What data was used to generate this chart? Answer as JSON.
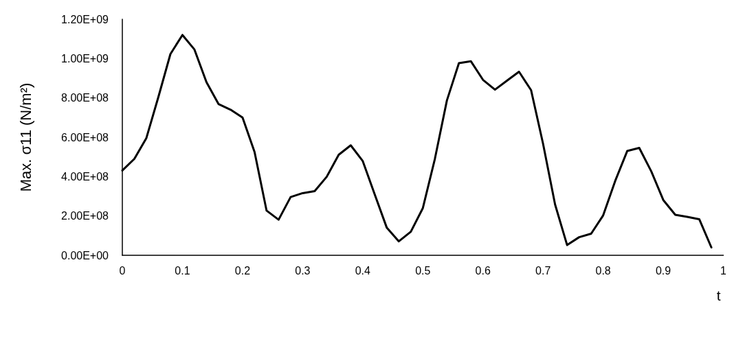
{
  "chart_data": {
    "type": "line",
    "xlabel": "t",
    "ylabel": "Max. σ11 (N/m²)",
    "x": [
      0,
      0.02,
      0.04,
      0.06,
      0.08,
      0.1,
      0.12,
      0.14,
      0.16,
      0.18,
      0.2,
      0.22,
      0.24,
      0.26,
      0.28,
      0.3,
      0.32,
      0.34,
      0.36,
      0.38,
      0.4,
      0.42,
      0.44,
      0.46,
      0.48,
      0.5,
      0.52,
      0.54,
      0.56,
      0.58,
      0.6,
      0.62,
      0.64,
      0.66,
      0.68,
      0.7,
      0.72,
      0.74,
      0.76,
      0.78,
      0.8,
      0.82,
      0.84,
      0.86,
      0.88,
      0.9,
      0.92,
      0.94,
      0.96,
      0.98
    ],
    "series": [
      {
        "color": "#000000",
        "values": [
          431000000.0,
          490000000.0,
          596000000.0,
          805000000.0,
          1023000000.0,
          1120000000.0,
          1046000000.0,
          880000000.0,
          769000000.0,
          740000000.0,
          700000000.0,
          525000000.0,
          227000000.0,
          181000000.0,
          296000000.0,
          316000000.0,
          326000000.0,
          399000000.0,
          511000000.0,
          559000000.0,
          479000000.0,
          309000000.0,
          140000000.0,
          71000000.0,
          120000000.0,
          240000000.0,
          490000000.0,
          787000000.0,
          977000000.0,
          986000000.0,
          892000000.0,
          842000000.0,
          888000000.0,
          933000000.0,
          840000000.0,
          567000000.0,
          258000000.0,
          52000000.0,
          92000000.0,
          110000000.0,
          203000000.0,
          378000000.0,
          530000000.0,
          546000000.0,
          427000000.0,
          281000000.0,
          206000000.0,
          195000000.0,
          183000000.0,
          40000000.0
        ]
      }
    ],
    "xlim": [
      0,
      1
    ],
    "xticks": [
      0,
      0.1,
      0.2,
      0.3,
      0.4,
      0.5,
      0.6,
      0.7,
      0.8,
      0.9,
      1
    ],
    "ylim": [
      0,
      1200000000.0
    ],
    "yticks": [
      {
        "value": 0,
        "label": "0.00E+00"
      },
      {
        "value": 200000000.0,
        "label": "2.00E+08"
      },
      {
        "value": 400000000.0,
        "label": "4.00E+08"
      },
      {
        "value": 600000000.0,
        "label": "6.00E+08"
      },
      {
        "value": 800000000.0,
        "label": "8.00E+08"
      },
      {
        "value": 1000000000.0,
        "label": "1.00E+09"
      },
      {
        "value": 1200000000.0,
        "label": "1.20E+09"
      }
    ],
    "grid": false,
    "marker": "none",
    "line_style": "solid"
  }
}
